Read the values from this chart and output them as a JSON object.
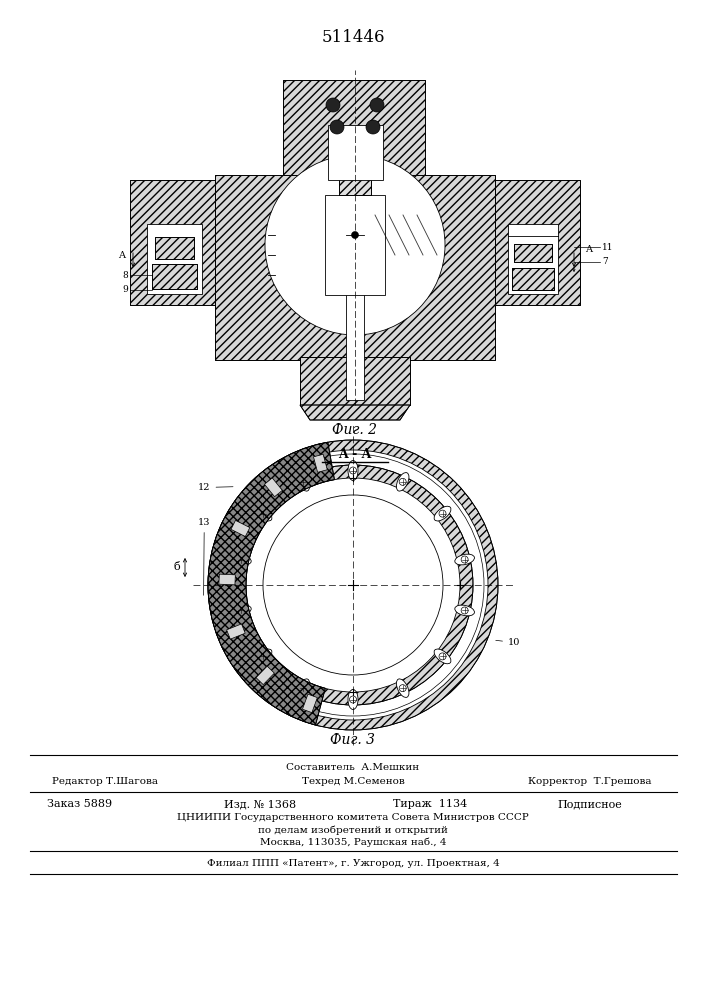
{
  "patent_number": "511446",
  "fig2_label": "Фиг. 2",
  "fig3_label": "Фиг. 3",
  "section_label": "A - A",
  "bg_color": "#ffffff",
  "line_color": "#000000",
  "footer": {
    "sostavitel_label": "Составитель",
    "sostavitel_name": "А.Мешкин",
    "redaktor_label": "Редактор",
    "redaktor_name": "Т.Шагова",
    "tehred_label": "Техред",
    "tehred_name": "М.Семенов",
    "korrektor_label": "Корректор",
    "korrektor_name": "Т.Грешова",
    "zakaz_label": "Заказ",
    "zakaz_value": "5889",
    "izd_label": "Изд. №",
    "izd_value": "1368",
    "tirazh_label": "Тираж",
    "tirazh_value": "1134",
    "podpisnoe": "Подписное",
    "tsnipi_line1": "ЦНИИПИ Государственного комитета Совета Министров СССР",
    "tsnipi_line2": "по делам изобретений и открытий",
    "tsnipi_line3": "Москва, 113035, Раушская наб., 4",
    "filial_line": "Филиал ППП «Патент», г. Ужгород, ул. Проектная, 4"
  }
}
